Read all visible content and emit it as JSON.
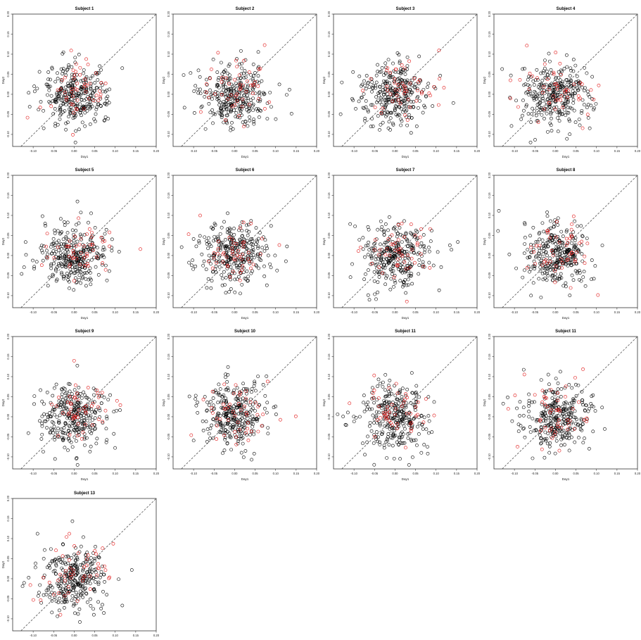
{
  "figure": {
    "panel_count": 13,
    "layout": "4x4 grid, 13 panels"
  },
  "colors": {
    "background": "#ffffff",
    "point_default": "#000000",
    "point_highlight": "#e01010",
    "diagonal": "#555555",
    "axis": "#333333"
  },
  "chart_data": [
    {
      "type": "scatter",
      "title": "Subject 1",
      "xlabel": "Day1",
      "ylabel": "Day2",
      "xlim": [
        -0.15,
        0.2
      ],
      "ylim": [
        -0.13,
        0.2
      ],
      "xticks": [
        "-0.10",
        "-0.05",
        "0.00",
        "0.05",
        "0.10",
        "0.15",
        "0.20"
      ],
      "yticks": [
        "-0.10",
        "-0.05",
        "0.00",
        "0.05",
        "0.10",
        "0.15",
        "0.20"
      ],
      "reference_line": "y = x (dashed)",
      "series": [
        {
          "color": "black",
          "count": 300
        },
        {
          "color": "red",
          "count": 50
        }
      ]
    },
    {
      "type": "scatter",
      "title": "Subject 2",
      "xlabel": "Day1",
      "ylabel": "Day2",
      "xlim": [
        -0.15,
        0.2
      ],
      "ylim": [
        -0.13,
        0.2
      ],
      "xticks": [
        "-0.10",
        "-0.05",
        "0.00",
        "0.05",
        "0.10",
        "0.15",
        "0.20"
      ],
      "yticks": [
        "-0.10",
        "-0.05",
        "0.00",
        "0.05",
        "0.10",
        "0.15",
        "0.20"
      ],
      "reference_line": "y = x (dashed)",
      "series": [
        {
          "color": "black",
          "count": 300
        },
        {
          "color": "red",
          "count": 50
        }
      ]
    },
    {
      "type": "scatter",
      "title": "Subject 3",
      "xlabel": "Day1",
      "ylabel": "Day2",
      "xlim": [
        -0.15,
        0.2
      ],
      "ylim": [
        -0.13,
        0.2
      ],
      "xticks": [
        "-0.10",
        "-0.05",
        "0.00",
        "0.05",
        "0.10",
        "0.15",
        "0.20"
      ],
      "yticks": [
        "-0.10",
        "-0.05",
        "0.00",
        "0.05",
        "0.10",
        "0.15",
        "0.20"
      ],
      "reference_line": "y = x (dashed)",
      "series": [
        {
          "color": "black",
          "count": 300
        },
        {
          "color": "red",
          "count": 50
        }
      ]
    },
    {
      "type": "scatter",
      "title": "Subject 4",
      "xlabel": "Day1",
      "ylabel": "Day2",
      "xlim": [
        -0.15,
        0.2
      ],
      "ylim": [
        -0.13,
        0.2
      ],
      "xticks": [
        "-0.10",
        "-0.05",
        "0.00",
        "0.05",
        "0.10",
        "0.15",
        "0.20"
      ],
      "yticks": [
        "-0.10",
        "-0.05",
        "0.00",
        "0.05",
        "0.10",
        "0.15",
        "0.20"
      ],
      "reference_line": "y = x (dashed)",
      "series": [
        {
          "color": "black",
          "count": 300
        },
        {
          "color": "red",
          "count": 50
        }
      ]
    },
    {
      "type": "scatter",
      "title": "Subject 5",
      "xlabel": "Day1",
      "ylabel": "Day2",
      "xlim": [
        -0.15,
        0.2
      ],
      "ylim": [
        -0.13,
        0.2
      ],
      "xticks": [
        "-0.10",
        "-0.05",
        "0.00",
        "0.05",
        "0.10",
        "0.15",
        "0.20"
      ],
      "yticks": [
        "-0.10",
        "-0.05",
        "0.00",
        "0.05",
        "0.10",
        "0.15",
        "0.20"
      ],
      "reference_line": "y = x (dashed)",
      "series": [
        {
          "color": "black",
          "count": 300
        },
        {
          "color": "red",
          "count": 50
        }
      ]
    },
    {
      "type": "scatter",
      "title": "Subject 6",
      "xlabel": "Day1",
      "ylabel": "Day2",
      "xlim": [
        -0.15,
        0.2
      ],
      "ylim": [
        -0.13,
        0.2
      ],
      "xticks": [
        "-0.10",
        "-0.05",
        "0.00",
        "0.05",
        "0.10",
        "0.15",
        "0.20"
      ],
      "yticks": [
        "-0.10",
        "-0.05",
        "0.00",
        "0.05",
        "0.10",
        "0.15",
        "0.20"
      ],
      "reference_line": "y = x (dashed)",
      "series": [
        {
          "color": "black",
          "count": 300
        },
        {
          "color": "red",
          "count": 50
        }
      ]
    },
    {
      "type": "scatter",
      "title": "Subject 7",
      "xlabel": "Day1",
      "ylabel": "Day2",
      "xlim": [
        -0.15,
        0.2
      ],
      "ylim": [
        -0.13,
        0.2
      ],
      "xticks": [
        "-0.10",
        "-0.05",
        "0.00",
        "0.05",
        "0.10",
        "0.15",
        "0.20"
      ],
      "yticks": [
        "-0.10",
        "-0.05",
        "0.00",
        "0.05",
        "0.10",
        "0.15",
        "0.20"
      ],
      "reference_line": "y = x (dashed)",
      "series": [
        {
          "color": "black",
          "count": 300
        },
        {
          "color": "red",
          "count": 50
        }
      ]
    },
    {
      "type": "scatter",
      "title": "Subject 8",
      "xlabel": "Day1",
      "ylabel": "Day2",
      "xlim": [
        -0.15,
        0.2
      ],
      "ylim": [
        -0.13,
        0.2
      ],
      "xticks": [
        "-0.10",
        "-0.05",
        "0.00",
        "0.05",
        "0.10",
        "0.15",
        "0.20"
      ],
      "yticks": [
        "-0.10",
        "-0.05",
        "0.00",
        "0.05",
        "0.10",
        "0.15",
        "0.20"
      ],
      "reference_line": "y = x (dashed)",
      "series": [
        {
          "color": "black",
          "count": 300
        },
        {
          "color": "red",
          "count": 50
        }
      ]
    },
    {
      "type": "scatter",
      "title": "Subject 9",
      "xlabel": "Day1",
      "ylabel": "Day2",
      "xlim": [
        -0.15,
        0.2
      ],
      "ylim": [
        -0.13,
        0.2
      ],
      "xticks": [
        "-0.10",
        "-0.05",
        "0.00",
        "0.05",
        "0.10",
        "0.15",
        "0.20"
      ],
      "yticks": [
        "-0.10",
        "-0.05",
        "0.00",
        "0.05",
        "0.10",
        "0.15",
        "0.20"
      ],
      "reference_line": "y = x (dashed)",
      "series": [
        {
          "color": "black",
          "count": 300
        },
        {
          "color": "red",
          "count": 50
        }
      ]
    },
    {
      "type": "scatter",
      "title": "Subject 10",
      "xlabel": "Day1",
      "ylabel": "Day2",
      "xlim": [
        -0.15,
        0.2
      ],
      "ylim": [
        -0.13,
        0.2
      ],
      "xticks": [
        "-0.10",
        "-0.05",
        "0.00",
        "0.05",
        "0.10",
        "0.15",
        "0.20"
      ],
      "yticks": [
        "-0.10",
        "-0.05",
        "0.00",
        "0.05",
        "0.10",
        "0.15",
        "0.20"
      ],
      "reference_line": "y = x (dashed)",
      "series": [
        {
          "color": "black",
          "count": 300
        },
        {
          "color": "red",
          "count": 50
        }
      ]
    },
    {
      "type": "scatter",
      "title": "Subject 11",
      "xlabel": "Day1",
      "ylabel": "Day2",
      "xlim": [
        -0.15,
        0.2
      ],
      "ylim": [
        -0.13,
        0.2
      ],
      "xticks": [
        "-0.10",
        "-0.05",
        "0.00",
        "0.05",
        "0.10",
        "0.15",
        "0.20"
      ],
      "yticks": [
        "-0.10",
        "-0.05",
        "0.00",
        "0.05",
        "0.10",
        "0.15",
        "0.20"
      ],
      "reference_line": "y = x (dashed)",
      "series": [
        {
          "color": "black",
          "count": 300
        },
        {
          "color": "red",
          "count": 50
        }
      ]
    },
    {
      "type": "scatter",
      "title": "Subject 11",
      "xlabel": "Day1",
      "ylabel": "Day2",
      "xlim": [
        -0.15,
        0.2
      ],
      "ylim": [
        -0.13,
        0.2
      ],
      "xticks": [
        "-0.10",
        "-0.05",
        "0.00",
        "0.05",
        "0.10",
        "0.15",
        "0.20"
      ],
      "yticks": [
        "-0.10",
        "-0.05",
        "0.00",
        "0.05",
        "0.10",
        "0.15",
        "0.20"
      ],
      "reference_line": "y = x (dashed)",
      "series": [
        {
          "color": "black",
          "count": 300
        },
        {
          "color": "red",
          "count": 50
        }
      ]
    },
    {
      "type": "scatter",
      "title": "Subject 13",
      "xlabel": "Day1",
      "xlabel_note": "",
      "ylabel": "Day2",
      "xlim": [
        -0.15,
        0.2
      ],
      "ylim": [
        -0.13,
        0.2
      ],
      "xticks": [
        "-0.10",
        "-0.05",
        "0.00",
        "0.05",
        "0.10",
        "0.15",
        "0.20"
      ],
      "yticks": [
        "-0.10",
        "-0.05",
        "0.00",
        "0.05",
        "0.10",
        "0.15",
        "0.20"
      ],
      "reference_line": "y = x (dashed)",
      "series": [
        {
          "color": "black",
          "count": 300
        },
        {
          "color": "red",
          "count": 50
        }
      ]
    }
  ]
}
